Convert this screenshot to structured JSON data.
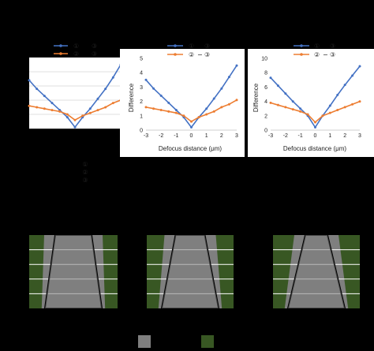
{
  "colors": {
    "blue": "#4472c4",
    "orange": "#ed7d31",
    "green": "#385723",
    "gray": "#7f7f7f"
  },
  "legend_labels": {
    "a1": "①",
    "a2": "③",
    "b1": "②",
    "b2": "③",
    "c1": "①",
    "c2": "③",
    "d1": "②",
    "d2": "③",
    "e1": "①",
    "e2": "③",
    "f1": "②",
    "f2": "③"
  },
  "stack_labels": [
    "①",
    "②",
    "③"
  ],
  "chart_data": [
    {
      "type": "line",
      "title": "",
      "xlabel": "",
      "ylabel": "",
      "x": [
        -3,
        -2.5,
        -2,
        -1.5,
        -1,
        -0.5,
        0,
        0.5,
        1,
        1.5,
        2,
        2.5,
        3
      ],
      "series": [
        {
          "name": "① ③",
          "color": "#4472c4",
          "values": [
            3.4,
            2.8,
            2.3,
            1.8,
            1.3,
            0.8,
            0.1,
            0.8,
            1.4,
            2.1,
            2.8,
            3.6,
            4.5
          ]
        },
        {
          "name": "② ③",
          "color": "#ed7d31",
          "values": [
            1.6,
            1.5,
            1.4,
            1.3,
            1.2,
            1.0,
            0.6,
            0.9,
            1.1,
            1.3,
            1.5,
            1.8,
            2.0
          ]
        }
      ],
      "ylim": [
        0,
        5
      ],
      "grid": true
    },
    {
      "type": "line",
      "title": "",
      "xlabel": "Defocus distance (μm)",
      "ylabel": "Difference",
      "x": [
        -3,
        -2.5,
        -2,
        -1.5,
        -1,
        -0.5,
        0,
        0.5,
        1,
        1.5,
        2,
        2.5,
        3
      ],
      "xticks": [
        "-3",
        "-2",
        "-1",
        "0",
        "1",
        "2",
        "3"
      ],
      "yticks": [
        "0",
        "1",
        "2",
        "3",
        "4",
        "5"
      ],
      "series": [
        {
          "name": "① ③",
          "color": "#4472c4",
          "values": [
            3.5,
            2.9,
            2.4,
            1.9,
            1.4,
            0.9,
            0.2,
            0.9,
            1.5,
            2.2,
            2.9,
            3.7,
            4.5
          ]
        },
        {
          "name": "② − ③",
          "color": "#ed7d31",
          "values": [
            1.6,
            1.5,
            1.4,
            1.3,
            1.2,
            1.0,
            0.6,
            0.9,
            1.1,
            1.3,
            1.6,
            1.8,
            2.1
          ]
        }
      ],
      "ylim": [
        0,
        5
      ],
      "grid": false,
      "legend": "top"
    },
    {
      "type": "line",
      "title": "",
      "xlabel": "Defocus distance (μm)",
      "ylabel": "Difference",
      "x": [
        -3,
        -2.5,
        -2,
        -1.5,
        -1,
        -0.5,
        0,
        0.5,
        1,
        1.5,
        2,
        2.5,
        3
      ],
      "xticks": [
        "-3",
        "-2",
        "-1",
        "0",
        "1",
        "2",
        "3"
      ],
      "yticks": [
        "0",
        "2",
        "4",
        "6",
        "8",
        "10"
      ],
      "series": [
        {
          "name": "① ③",
          "color": "#4472c4",
          "values": [
            7.3,
            6.2,
            5.1,
            4.0,
            3.0,
            2.0,
            0.4,
            2.0,
            3.4,
            4.9,
            6.3,
            7.6,
            8.9
          ]
        },
        {
          "name": "② − ③",
          "color": "#ed7d31",
          "values": [
            3.8,
            3.5,
            3.2,
            2.9,
            2.6,
            2.2,
            1.1,
            2.0,
            2.4,
            2.8,
            3.2,
            3.6,
            4.0
          ]
        }
      ],
      "ylim": [
        0,
        10
      ],
      "grid": false,
      "legend": "top"
    }
  ],
  "diagrams": [
    {
      "gap_top": 0.1
    },
    {
      "gap_top": 0.55
    },
    {
      "gap_top": 1.0
    }
  ]
}
